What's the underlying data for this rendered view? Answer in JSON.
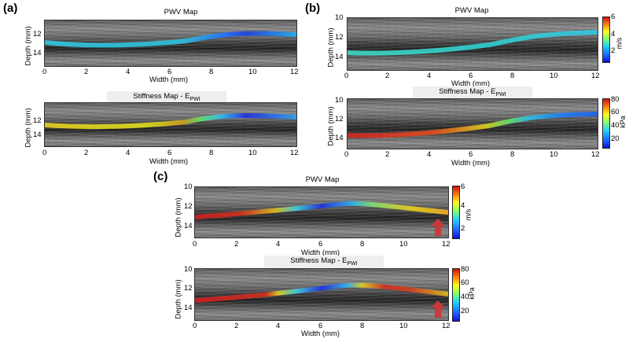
{
  "panels": {
    "a": {
      "label": "(a)",
      "top_title": "PWV Map",
      "bottom_title_main": "Stiffness Map - E",
      "bottom_title_sub": "PWI",
      "top_yticks": [
        "12",
        "14"
      ],
      "bottom_yticks": [
        "12",
        "14"
      ]
    },
    "b": {
      "label": "(b)",
      "top_title": "PWV Map",
      "bottom_title_main": "Stiffness Map - E",
      "bottom_title_sub": "PWI",
      "top_yticks": [
        "10",
        "12",
        "14"
      ],
      "bottom_yticks": [
        "10",
        "12",
        "14"
      ],
      "cbar_top_ticks": [
        "6",
        "4",
        "2"
      ],
      "cbar_top_unit": "m/s",
      "cbar_bottom_ticks": [
        "80",
        "60",
        "40",
        "20"
      ],
      "cbar_bottom_unit": "kPa"
    },
    "c": {
      "label": "(c)",
      "top_title": "PWV Map",
      "bottom_title_main": "Stiffness Map - E",
      "bottom_title_sub": "PWI",
      "top_yticks": [
        "10",
        "12",
        "14"
      ],
      "bottom_yticks": [
        "10",
        "12",
        "14"
      ],
      "cbar_top_ticks": [
        "6",
        "4",
        "2"
      ],
      "cbar_top_unit": "m/s",
      "cbar_bottom_ticks": [
        "80",
        "60",
        "40",
        "20"
      ],
      "cbar_bottom_unit": "kPa"
    }
  },
  "axes": {
    "xlabel": "Width (mm)",
    "ylabel": "Depth (mm)",
    "xticks": [
      "0",
      "2",
      "4",
      "6",
      "8",
      "10",
      "12"
    ]
  }
}
